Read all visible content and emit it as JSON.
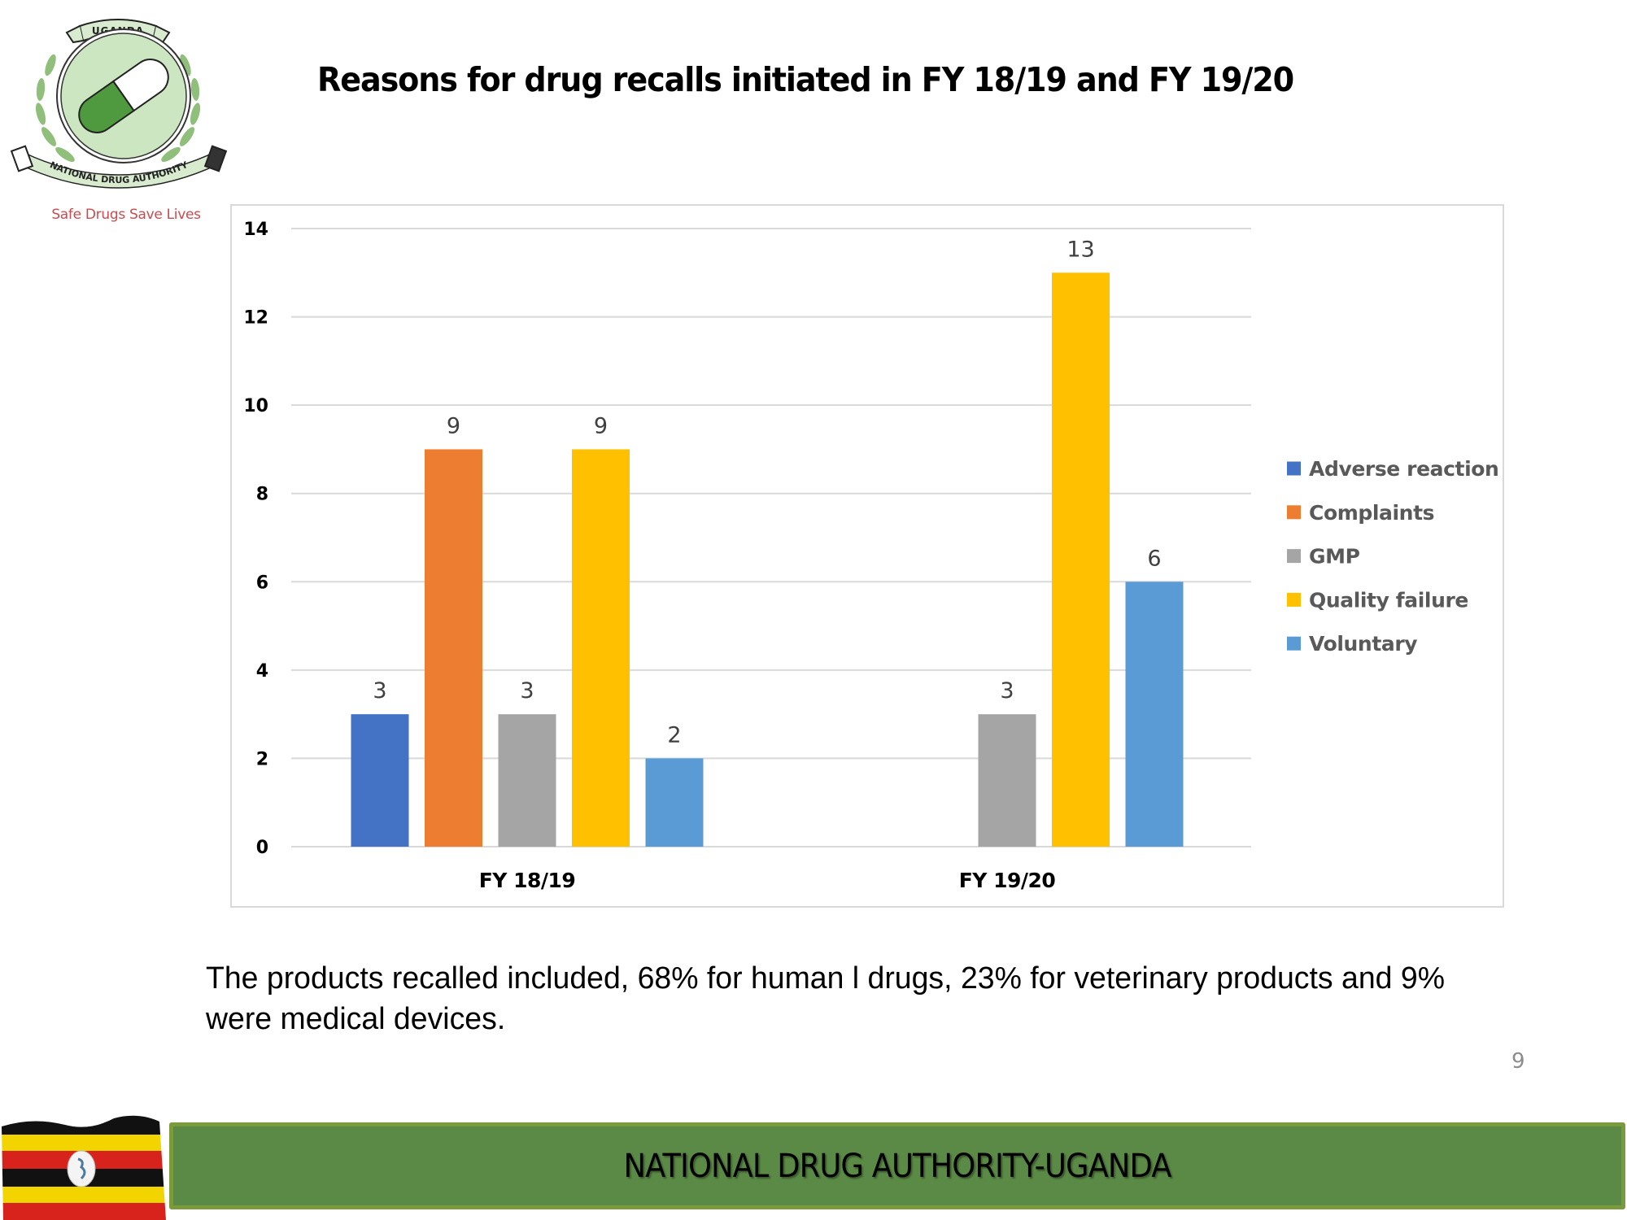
{
  "logo": {
    "top_text": "UGANDA",
    "ring_text": "NATIONAL DRUG AUTHORITY",
    "tagline": "Safe Drugs Save Lives"
  },
  "slide": {
    "title": "Reasons for drug recalls initiated in FY 18/19 and FY 19/20",
    "body_text": "The products recalled included, 68% for human l drugs, 23% for veterinary products and 9% were medical devices.",
    "page_number": "9"
  },
  "footer": {
    "banner_text": "NATIONAL DRUG AUTHORITY-UGANDA"
  },
  "colors": {
    "adverse_reaction": "#4472c4",
    "complaints": "#ed7d31",
    "gmp": "#a5a5a5",
    "quality_failure": "#ffc000",
    "voluntary": "#5b9bd5",
    "banner": "#5a8a45"
  },
  "chart_data": {
    "type": "bar",
    "title": "",
    "xlabel": "",
    "ylabel": "",
    "categories": [
      "FY 18/19",
      "FY 19/20"
    ],
    "series": [
      {
        "name": "Adverse reaction",
        "values": [
          3,
          null
        ],
        "color": "#4472c4"
      },
      {
        "name": "Complaints",
        "values": [
          9,
          null
        ],
        "color": "#ed7d31"
      },
      {
        "name": "GMP",
        "values": [
          3,
          3
        ],
        "color": "#a5a5a5"
      },
      {
        "name": "Quality failure",
        "values": [
          9,
          13
        ],
        "color": "#ffc000"
      },
      {
        "name": "Voluntary",
        "values": [
          2,
          6
        ],
        "color": "#5b9bd5"
      }
    ],
    "ylim": [
      0,
      14
    ],
    "yticks": [
      0,
      2,
      4,
      6,
      8,
      10,
      12,
      14
    ],
    "grid": true,
    "data_labels": true,
    "legend_position": "right"
  }
}
